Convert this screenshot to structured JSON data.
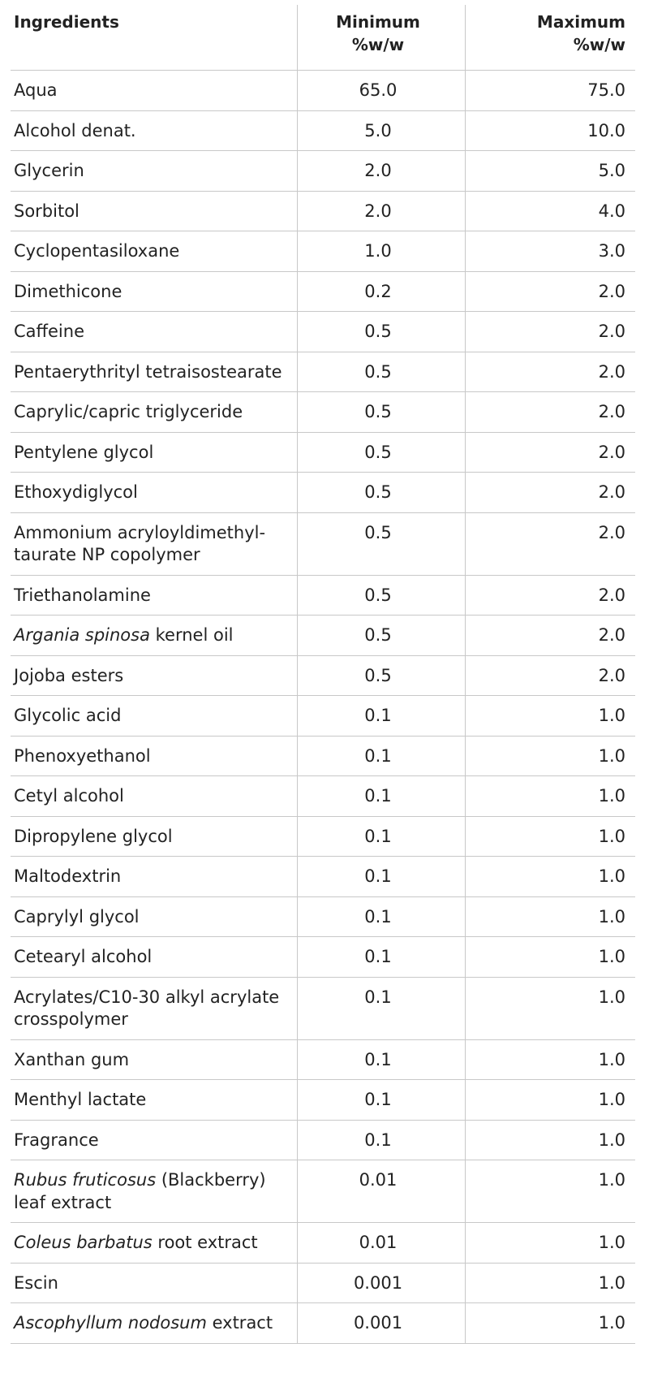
{
  "table": {
    "header": {
      "ingredient": "Ingredients",
      "minimum": [
        "Minimum",
        "%w/w"
      ],
      "maximum": [
        "Maximum",
        "%w/w"
      ]
    },
    "rows": [
      {
        "ingredient": [
          {
            "text": "Aqua"
          }
        ],
        "minimum": "65.0",
        "maximum": "75.0"
      },
      {
        "ingredient": [
          {
            "text": "Alcohol denat."
          }
        ],
        "minimum": "5.0",
        "maximum": "10.0"
      },
      {
        "ingredient": [
          {
            "text": "Glycerin"
          }
        ],
        "minimum": "2.0",
        "maximum": "5.0"
      },
      {
        "ingredient": [
          {
            "text": "Sorbitol"
          }
        ],
        "minimum": "2.0",
        "maximum": "4.0"
      },
      {
        "ingredient": [
          {
            "text": "Cyclopentasiloxane"
          }
        ],
        "minimum": "1.0",
        "maximum": "3.0"
      },
      {
        "ingredient": [
          {
            "text": "Dimethicone"
          }
        ],
        "minimum": "0.2",
        "maximum": "2.0"
      },
      {
        "ingredient": [
          {
            "text": "Caffeine"
          }
        ],
        "minimum": "0.5",
        "maximum": "2.0"
      },
      {
        "ingredient": [
          {
            "text": "Pentaerythrityl tetraisostearate"
          }
        ],
        "minimum": "0.5",
        "maximum": "2.0"
      },
      {
        "ingredient": [
          {
            "text": "Caprylic/capric triglyceride"
          }
        ],
        "minimum": "0.5",
        "maximum": "2.0"
      },
      {
        "ingredient": [
          {
            "text": "Pentylene glycol"
          }
        ],
        "minimum": "0.5",
        "maximum": "2.0"
      },
      {
        "ingredient": [
          {
            "text": "Ethoxydiglycol"
          }
        ],
        "minimum": "0.5",
        "maximum": "2.0"
      },
      {
        "ingredient": [
          {
            "text": "Ammonium acryloyldimethyl-taurate NP copolymer"
          }
        ],
        "minimum": "0.5",
        "maximum": "2.0"
      },
      {
        "ingredient": [
          {
            "text": "Triethanolamine"
          }
        ],
        "minimum": "0.5",
        "maximum": "2.0"
      },
      {
        "ingredient": [
          {
            "text": "Argania spinosa",
            "italic": true
          },
          {
            "text": " kernel oil"
          }
        ],
        "minimum": "0.5",
        "maximum": "2.0"
      },
      {
        "ingredient": [
          {
            "text": "Jojoba esters"
          }
        ],
        "minimum": "0.5",
        "maximum": "2.0"
      },
      {
        "ingredient": [
          {
            "text": "Glycolic acid"
          }
        ],
        "minimum": "0.1",
        "maximum": "1.0"
      },
      {
        "ingredient": [
          {
            "text": "Phenoxyethanol"
          }
        ],
        "minimum": "0.1",
        "maximum": "1.0"
      },
      {
        "ingredient": [
          {
            "text": "Cetyl alcohol"
          }
        ],
        "minimum": "0.1",
        "maximum": "1.0"
      },
      {
        "ingredient": [
          {
            "text": "Dipropylene glycol"
          }
        ],
        "minimum": "0.1",
        "maximum": "1.0"
      },
      {
        "ingredient": [
          {
            "text": "Maltodextrin"
          }
        ],
        "minimum": "0.1",
        "maximum": "1.0"
      },
      {
        "ingredient": [
          {
            "text": "Caprylyl glycol"
          }
        ],
        "minimum": "0.1",
        "maximum": "1.0"
      },
      {
        "ingredient": [
          {
            "text": "Cetearyl alcohol"
          }
        ],
        "minimum": "0.1",
        "maximum": "1.0"
      },
      {
        "ingredient": [
          {
            "text": "Acrylates/C10-30 alkyl acrylate crosspolymer"
          }
        ],
        "minimum": "0.1",
        "maximum": "1.0"
      },
      {
        "ingredient": [
          {
            "text": "Xanthan gum"
          }
        ],
        "minimum": "0.1",
        "maximum": "1.0"
      },
      {
        "ingredient": [
          {
            "text": "Menthyl lactate"
          }
        ],
        "minimum": "0.1",
        "maximum": "1.0"
      },
      {
        "ingredient": [
          {
            "text": "Fragrance"
          }
        ],
        "minimum": "0.1",
        "maximum": "1.0"
      },
      {
        "ingredient": [
          {
            "text": "Rubus fruticosus",
            "italic": true
          },
          {
            "text": " (Blackberry) leaf extract"
          }
        ],
        "minimum": "0.01",
        "maximum": "1.0"
      },
      {
        "ingredient": [
          {
            "text": "Coleus barbatus",
            "italic": true
          },
          {
            "text": " root extract"
          }
        ],
        "minimum": "0.01",
        "maximum": "1.0"
      },
      {
        "ingredient": [
          {
            "text": "Escin"
          }
        ],
        "minimum": "0.001",
        "maximum": "1.0"
      },
      {
        "ingredient": [
          {
            "text": "Ascophyllum nodosum",
            "italic": true
          },
          {
            "text": " extract"
          }
        ],
        "minimum": "0.001",
        "maximum": "1.0"
      }
    ]
  }
}
